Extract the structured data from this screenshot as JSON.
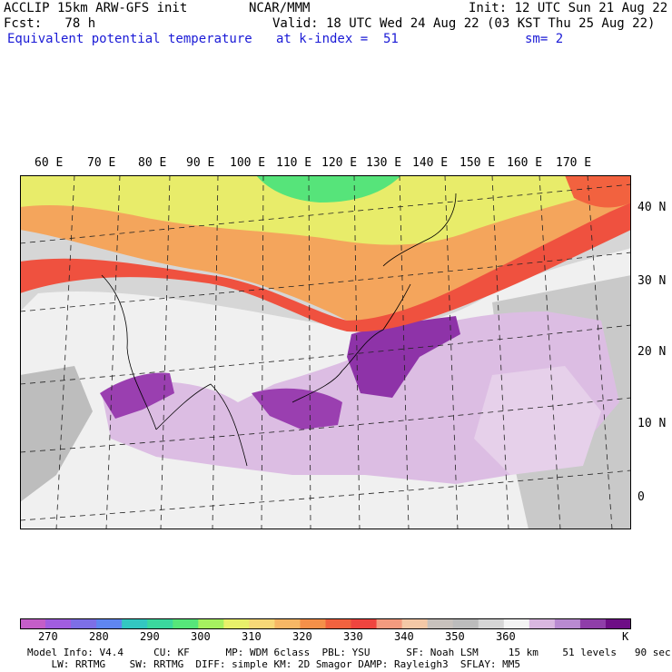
{
  "header": {
    "line1_left": "ACCLIP 15km ARW-GFS init",
    "line1_mid": "NCAR/MMM",
    "line1_right": "Init: 12 UTC Sun 21 Aug 22",
    "line2_left": "Fcst:   78 h",
    "line2_right": "Valid: 18 UTC Wed 24 Aug 22 (03 KST Thu 25 Aug 22)",
    "line3_field": "Equivalent potential temperature",
    "line3_level": "at k-index =  51",
    "line3_smooth": "sm= 2"
  },
  "map": {
    "lon_labels": [
      "60 E",
      "70 E",
      "80 E",
      "90 E",
      "100 E",
      "110 E",
      "120 E",
      "130 E",
      "140 E",
      "150 E",
      "160 E",
      "170 E"
    ],
    "lat_labels": [
      "40 N",
      "30 N",
      "20 N",
      "10 N",
      "0"
    ]
  },
  "colorbar": {
    "colors": [
      "#c45ec8",
      "#a15de0",
      "#7d6fe6",
      "#5f86f0",
      "#33c7c1",
      "#3bd89e",
      "#56e67a",
      "#a6f060",
      "#e8f06a",
      "#f7d877",
      "#f6b765",
      "#f59049",
      "#f2623f",
      "#ef453f",
      "#f39b7f",
      "#f4c8a6",
      "#c8c1bc",
      "#bcbcbc",
      "#d6d6d6",
      "#f3f3f3",
      "#d9b7e0",
      "#b98ad1",
      "#8f3ea9",
      "#6e0e86"
    ],
    "ticks": [
      "270",
      "280",
      "290",
      "300",
      "310",
      "320",
      "330",
      "340",
      "350",
      "360"
    ],
    "unit": "K"
  },
  "footer": {
    "line1": "Model Info: V4.4     CU: KF      MP: WDM 6class  PBL: YSU      SF: Noah LSM     15 km    51 levels   90 sec",
    "line2": "    LW: RRTMG    SW: RRTMG  DIFF: simple KM: 2D Smagor DAMP: Rayleigh3  SFLAY: MM5"
  }
}
